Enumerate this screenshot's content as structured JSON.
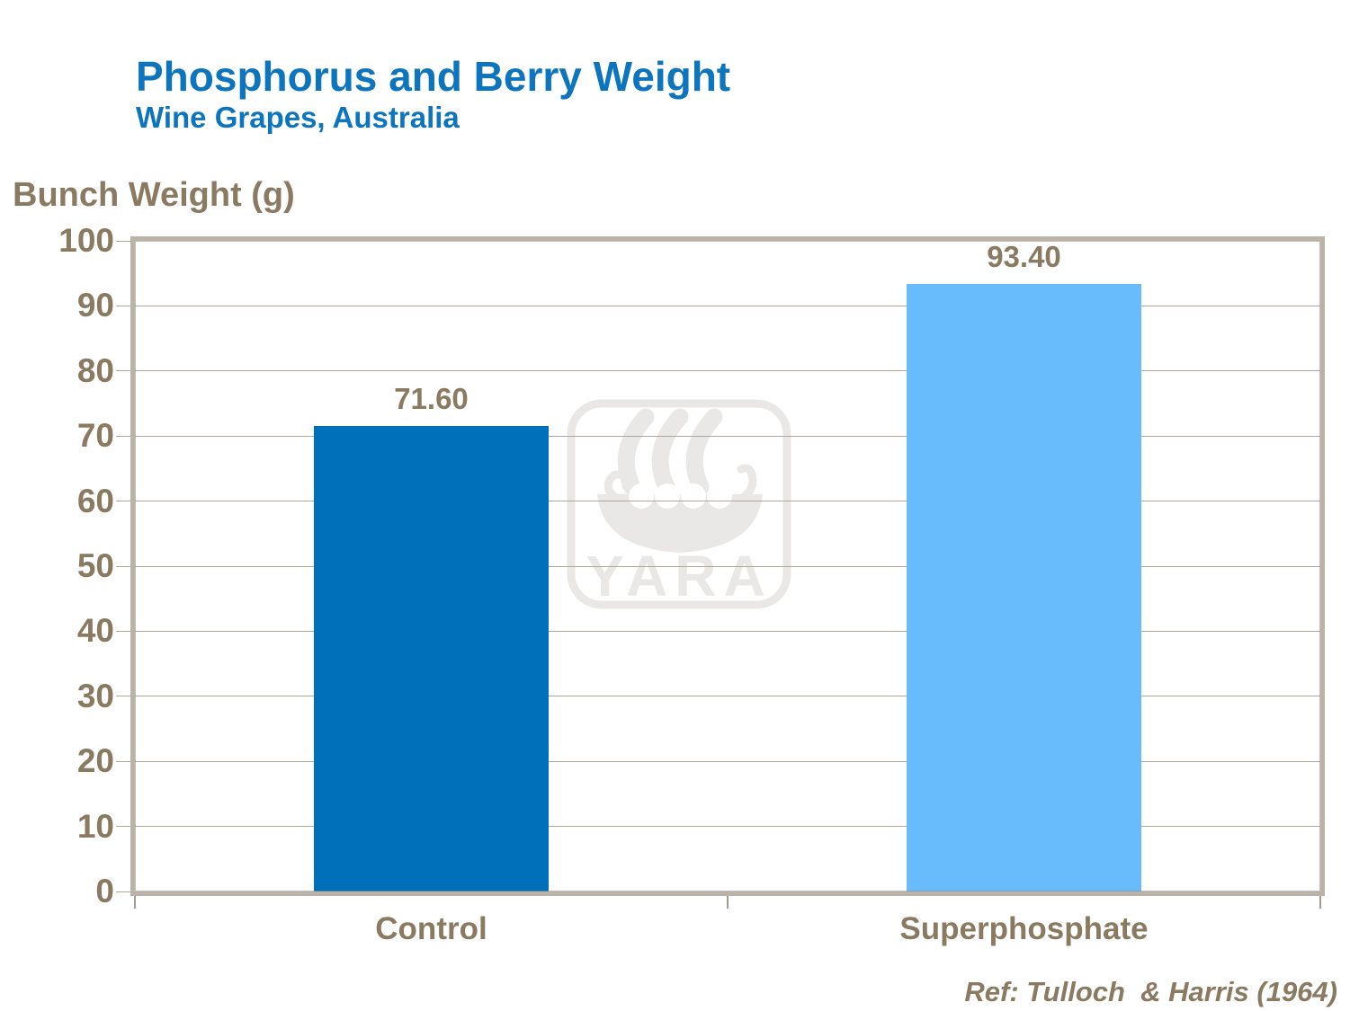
{
  "header": {
    "title": "Phosphorus and Berry Weight",
    "subtitle": "Wine Grapes, Australia"
  },
  "footer": {
    "reference": "Ref: Tulloch  & Harris (1964)"
  },
  "watermark": {
    "name": "yara-viking-ship-logo",
    "text": "YARA",
    "color": "#E9E8E6"
  },
  "colors": {
    "title_blue": "#0D74BE",
    "text_brown": "#8A7A61",
    "frame": "#BCB3A8",
    "gridline": "#B0A79B",
    "bar_control": "#0070BA",
    "bar_superphosphate": "#68BCFB"
  },
  "chart_data": {
    "type": "bar",
    "title": "Phosphorus and Berry Weight",
    "subtitle": "Wine Grapes, Australia",
    "ylabel": "Bunch Weight (g)",
    "categories": [
      "Control",
      "Superphosphate"
    ],
    "values": [
      71.6,
      93.4
    ],
    "value_labels": [
      "71.60",
      "93.40"
    ],
    "series_colors": [
      "#0070BA",
      "#68BCFB"
    ],
    "ylim": [
      0,
      100
    ],
    "ytick_step": 10,
    "grid": true,
    "legend": "none",
    "reference": "Ref: Tulloch & Harris (1964)"
  }
}
